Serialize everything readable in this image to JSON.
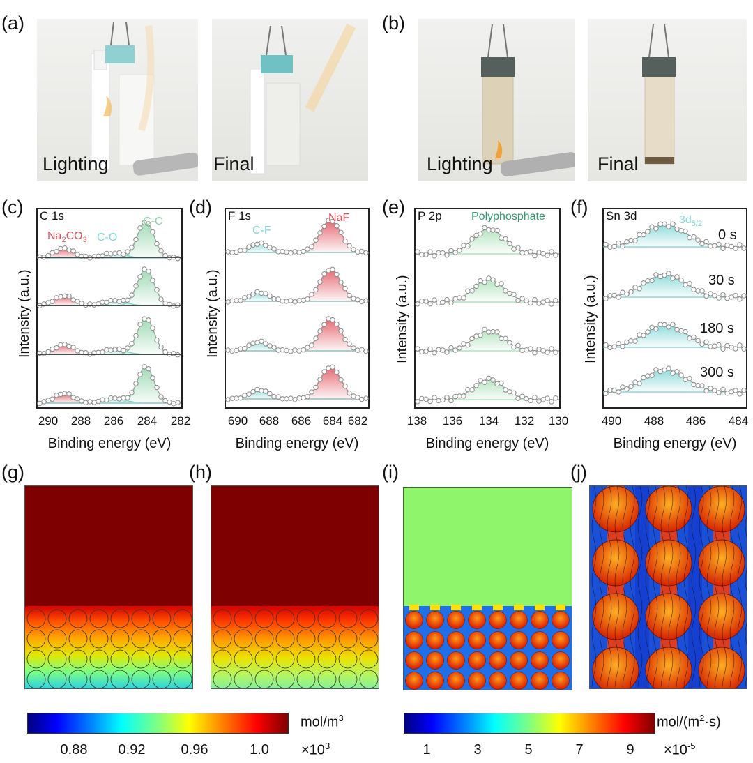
{
  "panels": {
    "a": "(a)",
    "b": "(b)",
    "c": "(c)",
    "d": "(d)",
    "e": "(e)",
    "f": "(f)",
    "g": "(g)",
    "h": "(h)",
    "i": "(i)",
    "j": "(j)"
  },
  "photos": {
    "a_left": "Lighting",
    "a_right": "Final",
    "b_left": "Lighting",
    "b_right": "Final"
  },
  "xps": {
    "ylabel": "Intensity (a.u.)",
    "xlabel": "Binding energy (eV)",
    "c": {
      "title": "C 1s",
      "ann_na2co3_main": "Na",
      "ann_na2co3_sub1": "2",
      "ann_na2co3_mid": "CO",
      "ann_na2co3_sub2": "3",
      "ann_co": "C-O",
      "ann_cc": "C-C",
      "ticks": [
        "290",
        "288",
        "286",
        "284",
        "282"
      ]
    },
    "d": {
      "title": "F 1s",
      "ann_cf": "C-F",
      "ann_naf": "NaF",
      "ticks": [
        "690",
        "688",
        "686",
        "684",
        "682"
      ]
    },
    "e": {
      "title": "P 2p",
      "ann_poly": "Polyphosphate",
      "ticks": [
        "138",
        "136",
        "134",
        "132",
        "130"
      ]
    },
    "f": {
      "title": "Sn 3d",
      "ann_main": "3d",
      "ann_sub": "5/2",
      "ticks": [
        "490",
        "488",
        "486",
        "484"
      ],
      "times": [
        "0 s",
        "30 s",
        "180 s",
        "300 s"
      ]
    }
  },
  "colorbar_left": {
    "unit_main": "mol/m",
    "unit_sup": "3",
    "ticks": [
      "0.88",
      "0.92",
      "0.96",
      "1.0"
    ],
    "scale_main": "×10",
    "scale_sup": "3"
  },
  "colorbar_right": {
    "unit_main": "mol/(m",
    "unit_sup": "2",
    "unit_end": "·s)",
    "ticks": [
      "1",
      "3",
      "5",
      "7",
      "9"
    ],
    "scale_main": "×10",
    "scale_sup": "-5"
  },
  "colors": {
    "red_fit": "#e0505a",
    "cyan_fit": "#7fd6d6",
    "green_fit": "#8fd4a8",
    "poly_green": "#2e9e6e",
    "dark_red": "#7f0000"
  }
}
